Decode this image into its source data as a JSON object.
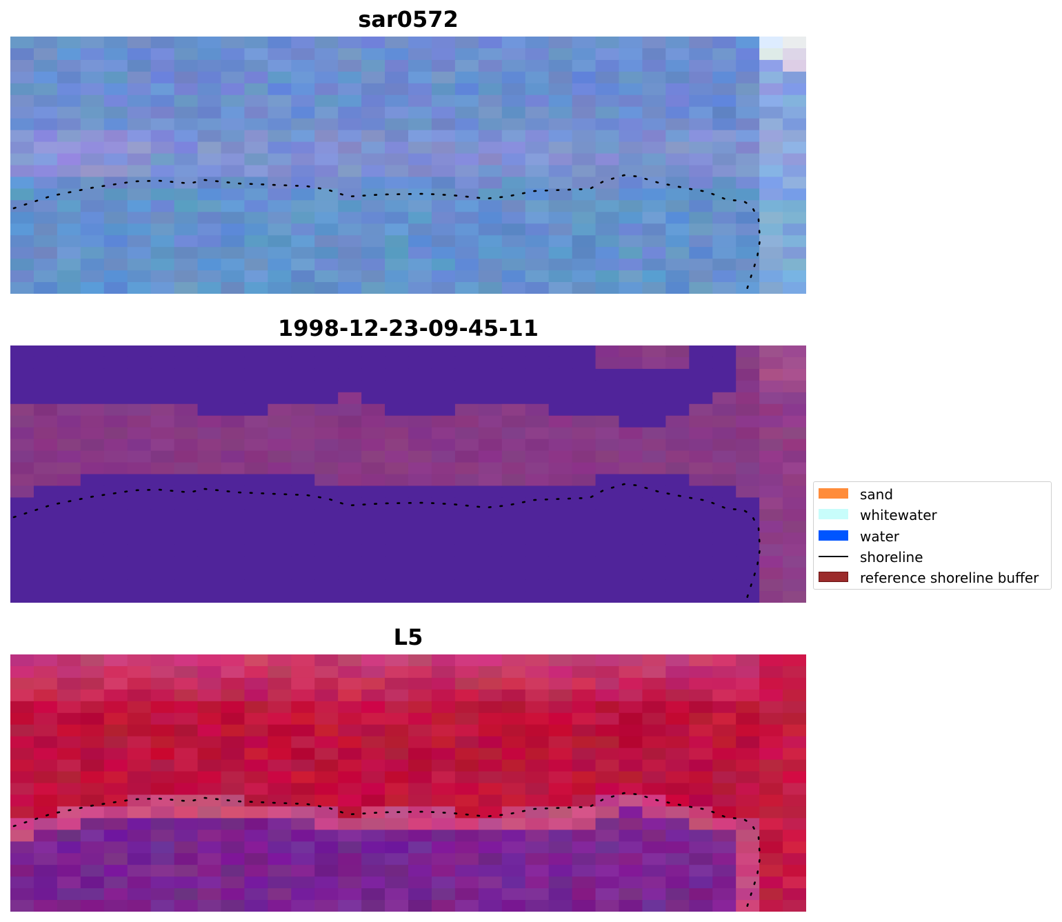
{
  "panels": [
    {
      "id": "sar",
      "title": "sar0572",
      "style": "rgb-blue"
    },
    {
      "id": "class",
      "title": "1998-12-23-09-45-11",
      "style": "classification"
    },
    {
      "id": "l5",
      "title": "L5",
      "style": "index"
    }
  ],
  "legend": {
    "items": [
      {
        "label": "sand",
        "kind": "patch",
        "color": "#ff8c3a"
      },
      {
        "label": "whitewater",
        "kind": "patch",
        "color": "#c8fdfb"
      },
      {
        "label": "water",
        "kind": "patch",
        "color": "#0055ff"
      },
      {
        "label": "shoreline",
        "kind": "line",
        "color": "#000000"
      },
      {
        "label": "reference shoreline buffer",
        "kind": "patch",
        "color": "#9b2b2b"
      }
    ]
  },
  "colors": {
    "class_water": "#50249a",
    "class_land": "#873985",
    "index_high": "#c31240",
    "index_low": "#7a2590",
    "sar_base": "#6c8ed0"
  }
}
